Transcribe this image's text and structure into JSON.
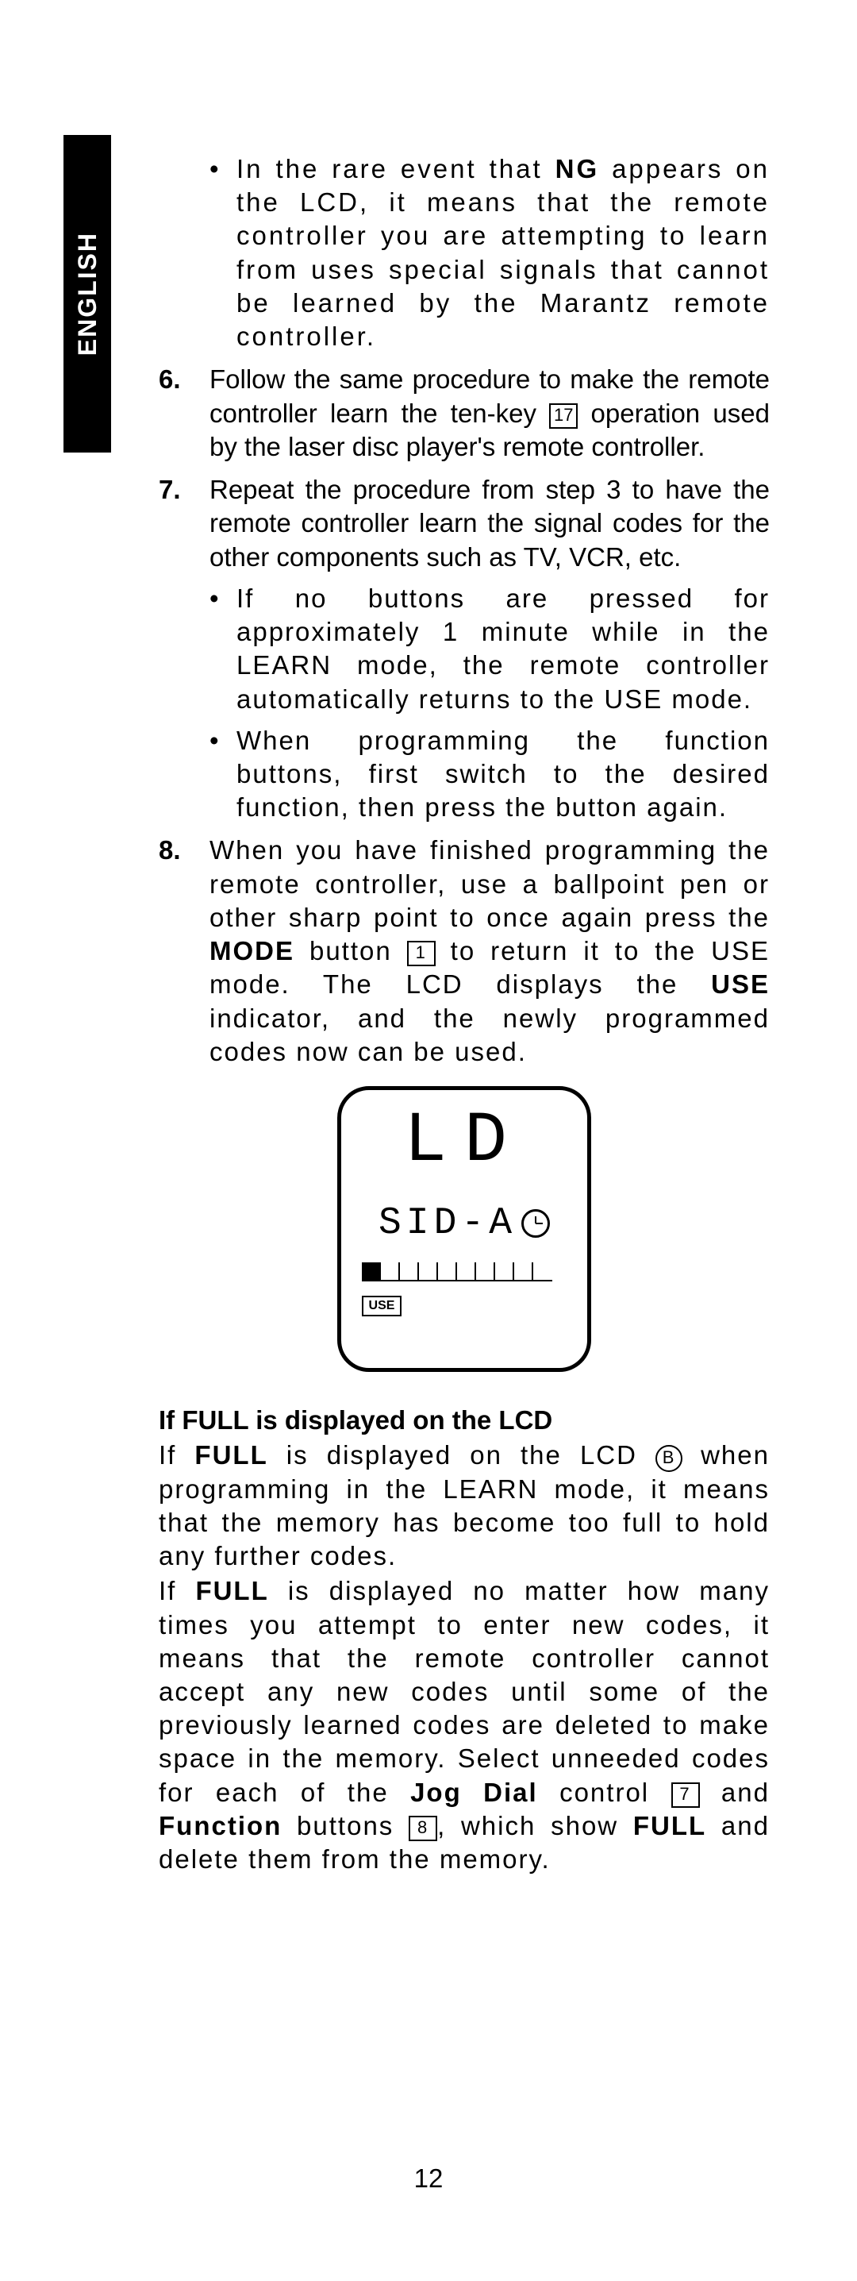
{
  "language_tab": "ENGLISH",
  "bullets": {
    "ng": {
      "part1": "In the rare event that ",
      "bold1": "NG",
      "part2": " appears on the LCD, it means that the remote controller you are attempting to learn from uses special signals that cannot be learned by the Marantz remote controller."
    },
    "idle": "If no buttons are pressed for approximately 1 minute while in the LEARN mode, the remote controller automatically returns to the USE mode.",
    "func": "When programming the function buttons, first switch to the desired function, then press the button again."
  },
  "steps": {
    "s6": {
      "num": "6.",
      "text_a": "Follow the same procedure to make the remote controller learn the ten-key ",
      "key": "17",
      "text_b": " operation used by the laser disc player's remote controller."
    },
    "s7": {
      "num": "7.",
      "text": "Repeat the procedure from step 3 to have the remote controller learn the signal codes for the other components such as TV, VCR, etc."
    },
    "s8": {
      "num": "8.",
      "text_a": "When you have finished programming the remote controller, use a ballpoint pen or other sharp point to once again press the ",
      "bold_mode": "MODE",
      "text_b": " button ",
      "key": "1",
      "text_c": " to return it to the USE mode. The LCD displays the ",
      "bold_use": "USE",
      "text_d": " indicator, and the newly programmed codes now can be used."
    }
  },
  "lcd": {
    "line1": "LD",
    "line2": "SID-A",
    "use_label": "USE",
    "ticks": 10
  },
  "full_section": {
    "heading": "If FULL is displayed on the LCD",
    "p1": {
      "a": "If ",
      "b1": "FULL",
      "b": " is displayed on the LCD ",
      "circ": "B",
      "c": " when programming in the LEARN mode, it means that the memory has become too full to hold any further codes."
    },
    "p2": {
      "a": "If ",
      "b1": "FULL",
      "b": " is displayed no matter how many times you attempt to enter new codes, it means that the remote controller cannot accept any new codes until some of the previously learned codes are deleted to make space in the memory. Select unneeded codes for each of the ",
      "b2": "Jog Dial",
      "c": " control ",
      "k1": "7",
      "d": " and ",
      "b3": "Function",
      "e": " buttons ",
      "k2": "8",
      "f": ", which show ",
      "b4": "FULL",
      "g": " and delete them from the memory."
    }
  },
  "page_number": "12"
}
